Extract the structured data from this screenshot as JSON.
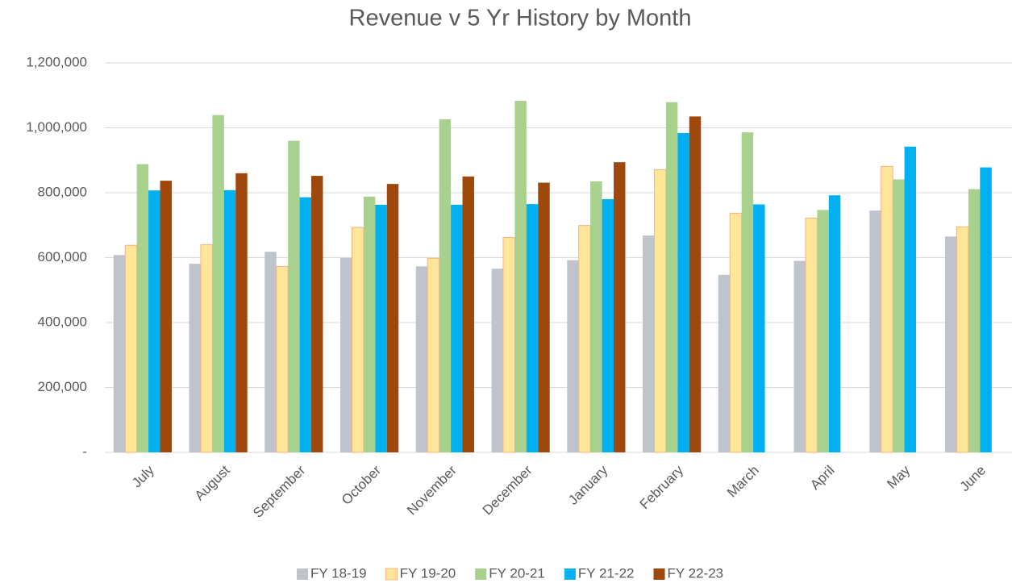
{
  "chart_data": {
    "type": "bar",
    "title": "Revenue v 5 Yr History by Month",
    "categories": [
      "July",
      "August",
      "September",
      "October",
      "November",
      "December",
      "January",
      "February",
      "March",
      "April",
      "May",
      "June"
    ],
    "series": [
      {
        "name": "FY 18-19",
        "color": "#bfc3cc",
        "values": [
          608000,
          581000,
          618000,
          599000,
          573000,
          566000,
          592000,
          668000,
          547000,
          590000,
          745000,
          665000
        ]
      },
      {
        "name": "FY 19-20",
        "color": "#ffe699",
        "values": [
          638000,
          640000,
          573000,
          693000,
          598000,
          662000,
          699000,
          871000,
          737000,
          722000,
          881000,
          695000
        ]
      },
      {
        "name": "FY 20-21",
        "color": "#a9d18e",
        "values": [
          888000,
          1039000,
          960000,
          788000,
          1026000,
          1083000,
          835000,
          1079000,
          986000,
          747000,
          841000,
          811000
        ]
      },
      {
        "name": "FY 21-22",
        "color": "#00b0f0",
        "values": [
          807000,
          808000,
          786000,
          763000,
          763000,
          765000,
          780000,
          984000,
          764000,
          792000,
          942000,
          878000
        ]
      },
      {
        "name": "FY 22-23",
        "color": "#9e480e",
        "values": [
          837000,
          860000,
          852000,
          827000,
          850000,
          831000,
          894000,
          1035000,
          null,
          null,
          null,
          null
        ]
      }
    ],
    "ylim": [
      0,
      1200000
    ],
    "yticks": [
      {
        "value": 0,
        "label": "-"
      },
      {
        "value": 200000,
        "label": "200,000"
      },
      {
        "value": 400000,
        "label": "400,000"
      },
      {
        "value": 600000,
        "label": "600,000"
      },
      {
        "value": 800000,
        "label": "800,000"
      },
      {
        "value": 1000000,
        "label": "1,000,000"
      },
      {
        "value": 1200000,
        "label": "1,200,000"
      }
    ],
    "grid": true,
    "legend": "bottom"
  }
}
